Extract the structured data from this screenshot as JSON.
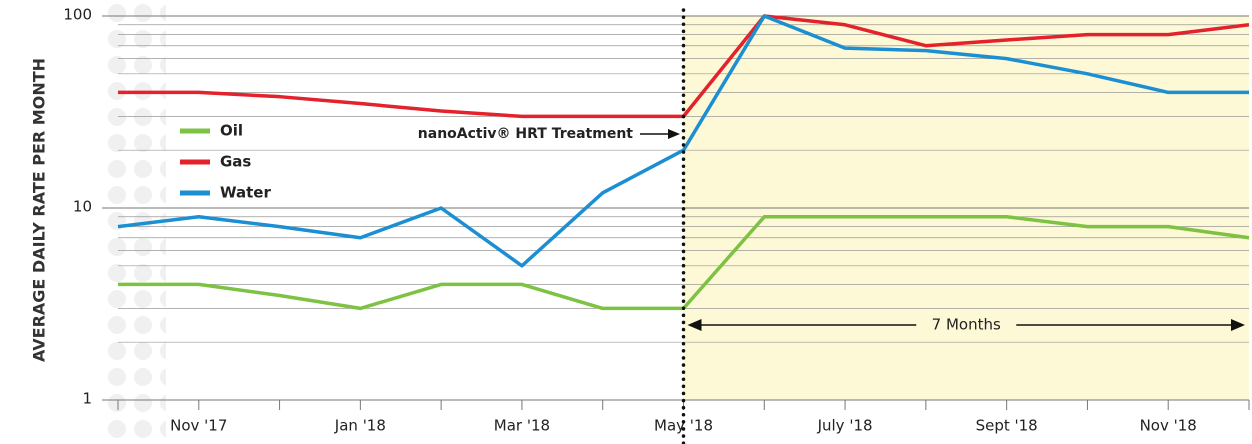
{
  "chart_data": {
    "type": "line",
    "y_label": "AVERAGE DAILY RATE PER MONTH",
    "categories": [
      null,
      "Nov '17",
      null,
      "Jan '18",
      null,
      "Mar '18",
      null,
      "May '18",
      null,
      "July '18",
      null,
      "Sept '18",
      null,
      "Nov '18",
      null
    ],
    "series": [
      {
        "name": "Oil",
        "color": "#7dc242",
        "values": [
          4,
          4,
          3.5,
          3,
          4,
          4,
          3,
          3,
          9,
          9,
          9,
          9,
          8,
          8,
          7
        ]
      },
      {
        "name": "Gas",
        "color": "#e3222b",
        "values": [
          40,
          40,
          38,
          35,
          32,
          30,
          30,
          30,
          100,
          90,
          70,
          75,
          80,
          80,
          90
        ]
      },
      {
        "name": "Water",
        "color": "#1b8fd2",
        "values": [
          8,
          9,
          8,
          7,
          10,
          5,
          12,
          20,
          100,
          68,
          66,
          60,
          50,
          40,
          40
        ]
      }
    ],
    "log_scale": true,
    "ylim": [
      1,
      100
    ],
    "yticks": [
      1,
      10,
      100
    ],
    "minor_yticks": [
      2,
      3,
      4,
      5,
      6,
      7,
      8,
      9,
      20,
      30,
      40,
      50,
      60,
      70,
      80,
      90
    ],
    "grid": true,
    "annotation": {
      "text": "nanoActiv® HRT Treatment",
      "at": "May '18"
    },
    "span_label": "7 Months"
  }
}
